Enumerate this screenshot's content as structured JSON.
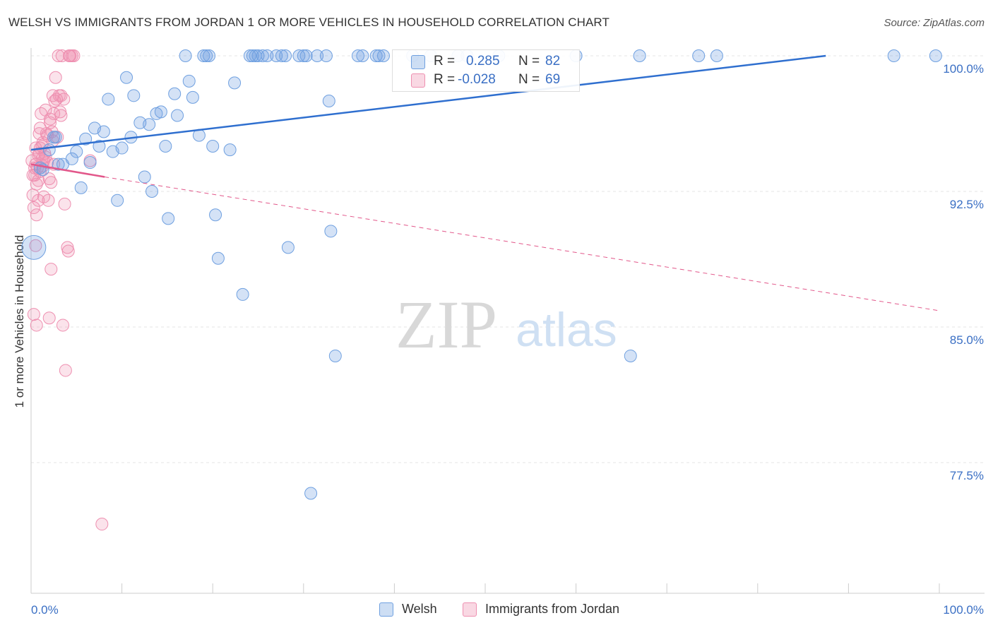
{
  "title": "WELSH VS IMMIGRANTS FROM JORDAN 1 OR MORE VEHICLES IN HOUSEHOLD CORRELATION CHART",
  "source": "Source: ZipAtlas.com",
  "watermark": {
    "zip": "ZIP",
    "atlas": "atlas"
  },
  "colors": {
    "welsh": "#6fa0e0",
    "welsh_fill": "rgba(111,160,224,0.30)",
    "welsh_line": "#2f6fcf",
    "jordan": "#ee8fb0",
    "jordan_fill": "rgba(238,143,176,0.25)",
    "jordan_line": "#e2578a",
    "grid": "#e4e4e4",
    "axis_label": "#3a6fc4"
  },
  "legend_inset": {
    "rows": [
      {
        "r_label": "R =",
        "r_value": "0.285",
        "n_label": "N =",
        "n_value": "82"
      },
      {
        "r_label": "R =",
        "r_value": "-0.028",
        "n_label": "N =",
        "n_value": "69"
      }
    ]
  },
  "legend_bottom": {
    "welsh": "Welsh",
    "jordan": "Immigrants from Jordan"
  },
  "chart_data": {
    "type": "scatter",
    "ylabel": "1 or more Vehicles in Household",
    "xlim": [
      0,
      100
    ],
    "ylim": [
      71.0,
      100.6
    ],
    "x_tick_labels": [
      "0.0%",
      "100.0%"
    ],
    "y_tick_values": [
      100.0,
      92.5,
      85.0,
      77.5
    ],
    "y_tick_labels": [
      "100.0%",
      "92.5%",
      "85.0%",
      "77.5%"
    ],
    "grid": true,
    "legend_position": "top-center",
    "series": [
      {
        "name": "Welsh",
        "trend": {
          "x": [
            0,
            87.5
          ],
          "y": [
            94.8,
            100.0
          ],
          "style": "solid"
        },
        "points": [
          [
            0.3,
            89.4
          ],
          [
            1.0,
            93.8
          ],
          [
            1.3,
            93.7
          ],
          [
            2.0,
            94.8
          ],
          [
            2.5,
            95.5
          ],
          [
            2.7,
            95.5
          ],
          [
            3.0,
            94.0
          ],
          [
            3.5,
            94.0
          ],
          [
            4.5,
            94.3
          ],
          [
            5.0,
            94.7
          ],
          [
            5.5,
            92.7
          ],
          [
            6.0,
            95.4
          ],
          [
            6.5,
            94.1
          ],
          [
            7.0,
            96.0
          ],
          [
            7.5,
            95.0
          ],
          [
            8.0,
            95.8
          ],
          [
            8.5,
            97.6
          ],
          [
            9.0,
            94.7
          ],
          [
            9.5,
            92.0
          ],
          [
            10.0,
            94.9
          ],
          [
            10.5,
            98.8
          ],
          [
            11.0,
            95.5
          ],
          [
            11.3,
            97.8
          ],
          [
            12.0,
            96.3
          ],
          [
            12.5,
            93.3
          ],
          [
            13.0,
            96.2
          ],
          [
            13.3,
            92.5
          ],
          [
            13.8,
            96.8
          ],
          [
            14.3,
            96.9
          ],
          [
            14.8,
            95.0
          ],
          [
            15.1,
            91.0
          ],
          [
            15.8,
            97.9
          ],
          [
            16.1,
            96.7
          ],
          [
            17.0,
            100.0
          ],
          [
            17.4,
            98.6
          ],
          [
            17.8,
            97.7
          ],
          [
            18.5,
            95.6
          ],
          [
            19.0,
            100.0
          ],
          [
            19.3,
            100.0
          ],
          [
            19.6,
            100.0
          ],
          [
            20.0,
            95.0
          ],
          [
            20.3,
            91.2
          ],
          [
            20.6,
            88.8
          ],
          [
            21.9,
            94.8
          ],
          [
            22.4,
            98.5
          ],
          [
            23.3,
            86.8
          ],
          [
            24.1,
            100.0
          ],
          [
            24.4,
            100.0
          ],
          [
            24.7,
            100.0
          ],
          [
            25.0,
            100.0
          ],
          [
            25.5,
            100.0
          ],
          [
            26.0,
            100.0
          ],
          [
            27.0,
            100.0
          ],
          [
            27.6,
            100.0
          ],
          [
            28.0,
            100.0
          ],
          [
            28.3,
            89.4
          ],
          [
            29.5,
            100.0
          ],
          [
            30.0,
            100.0
          ],
          [
            30.3,
            100.0
          ],
          [
            30.8,
            75.8
          ],
          [
            31.5,
            100.0
          ],
          [
            32.5,
            100.0
          ],
          [
            32.8,
            97.5
          ],
          [
            33.0,
            90.3
          ],
          [
            33.5,
            83.4
          ],
          [
            36.0,
            100.0
          ],
          [
            36.5,
            100.0
          ],
          [
            38.0,
            100.0
          ],
          [
            38.3,
            100.0
          ],
          [
            38.8,
            100.0
          ],
          [
            42.0,
            100.0
          ],
          [
            44.0,
            100.0
          ],
          [
            47.0,
            100.0
          ],
          [
            48.0,
            100.0
          ],
          [
            51.5,
            100.0
          ],
          [
            60.0,
            100.0
          ],
          [
            66.0,
            83.4
          ],
          [
            67.0,
            100.0
          ],
          [
            73.5,
            100.0
          ],
          [
            75.5,
            100.0
          ],
          [
            95.0,
            100.0
          ],
          [
            99.6,
            100.0
          ]
        ]
      },
      {
        "name": "Immigrants from Jordan",
        "trend": {
          "x": [
            0,
            8.1
          ],
          "y": [
            94.0,
            93.3
          ],
          "style": "solid",
          "extension": {
            "x": [
              8.1,
              100
            ],
            "y": [
              93.3,
              85.9
            ],
            "style": "dashed"
          }
        },
        "points": [
          [
            0.1,
            94.2
          ],
          [
            0.2,
            93.4
          ],
          [
            0.2,
            92.3
          ],
          [
            0.3,
            91.6
          ],
          [
            0.3,
            85.7
          ],
          [
            0.4,
            93.8
          ],
          [
            0.5,
            94.9
          ],
          [
            0.5,
            89.5
          ],
          [
            0.6,
            91.2
          ],
          [
            0.6,
            85.1
          ],
          [
            0.7,
            93.8
          ],
          [
            0.8,
            94.5
          ],
          [
            0.8,
            92.0
          ],
          [
            0.9,
            95.7
          ],
          [
            1.0,
            96.0
          ],
          [
            1.0,
            94.9
          ],
          [
            1.1,
            96.8
          ],
          [
            1.2,
            94.3
          ],
          [
            1.3,
            95.2
          ],
          [
            1.4,
            92.2
          ],
          [
            1.5,
            94.6
          ],
          [
            1.6,
            97.0
          ],
          [
            1.7,
            95.7
          ],
          [
            1.8,
            94.1
          ],
          [
            1.9,
            92.0
          ],
          [
            2.0,
            93.2
          ],
          [
            2.0,
            85.5
          ],
          [
            2.1,
            96.5
          ],
          [
            2.2,
            88.2
          ],
          [
            2.3,
            95.8
          ],
          [
            2.4,
            97.8
          ],
          [
            2.5,
            96.8
          ],
          [
            2.5,
            94.0
          ],
          [
            2.6,
            97.5
          ],
          [
            2.7,
            98.8
          ],
          [
            2.8,
            97.6
          ],
          [
            2.9,
            95.5
          ],
          [
            3.0,
            100.0
          ],
          [
            3.1,
            97.8
          ],
          [
            3.2,
            96.9
          ],
          [
            3.3,
            97.8
          ],
          [
            3.4,
            100.0
          ],
          [
            3.5,
            85.1
          ],
          [
            3.6,
            97.6
          ],
          [
            3.7,
            91.8
          ],
          [
            3.8,
            82.6
          ],
          [
            4.0,
            89.4
          ],
          [
            4.1,
            89.2
          ],
          [
            4.2,
            100.0
          ],
          [
            4.3,
            100.0
          ],
          [
            4.5,
            100.0
          ],
          [
            4.7,
            100.0
          ],
          [
            6.5,
            94.2
          ],
          [
            7.8,
            74.1
          ],
          [
            0.4,
            93.4
          ],
          [
            0.9,
            94.6
          ],
          [
            1.3,
            93.9
          ],
          [
            1.6,
            94.4
          ],
          [
            2.1,
            96.3
          ],
          [
            2.4,
            95.3
          ],
          [
            0.6,
            92.9
          ],
          [
            1.2,
            95.0
          ],
          [
            1.8,
            95.6
          ],
          [
            3.3,
            96.7
          ],
          [
            0.8,
            93.1
          ],
          [
            1.4,
            94.2
          ],
          [
            2.2,
            93.0
          ],
          [
            0.5,
            94.0
          ],
          [
            1.0,
            93.6
          ]
        ]
      }
    ]
  }
}
